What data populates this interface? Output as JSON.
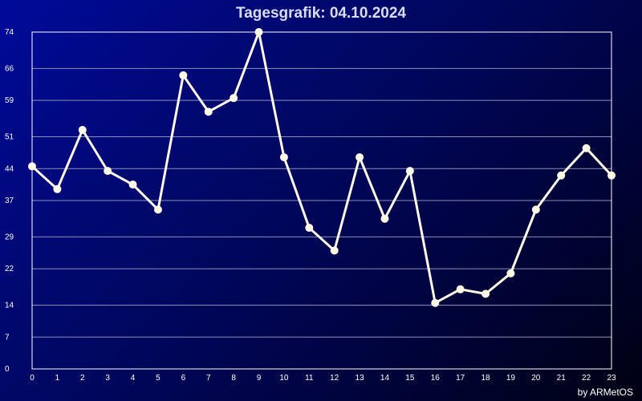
{
  "title": "Tagesgrafik: 04.10.2024",
  "credit": "by ARMetOS",
  "colors": {
    "background_start": "#000a9a",
    "background_end": "#000112",
    "line": "#fffbe6",
    "grid": "#8a8fb8",
    "axis": "#ffffff",
    "text": "#ffffff"
  },
  "chart_data": {
    "type": "line",
    "title": "Tagesgrafik: 04.10.2024",
    "xlabel": "",
    "ylabel": "",
    "x": [
      0,
      1,
      2,
      3,
      4,
      5,
      6,
      7,
      8,
      9,
      10,
      11,
      12,
      13,
      14,
      15,
      16,
      17,
      18,
      19,
      20,
      21,
      22,
      23
    ],
    "y_ticks": [
      0,
      7,
      14,
      22,
      29,
      37,
      44,
      51,
      59,
      66,
      74
    ],
    "ylim": [
      0,
      74
    ],
    "xlim": [
      0,
      23
    ],
    "grid": true,
    "series": [
      {
        "name": "",
        "values": [
          44.5,
          39.5,
          52.5,
          43.5,
          40.5,
          35,
          64.5,
          56.5,
          59.5,
          74,
          46.5,
          31,
          26,
          46.5,
          33,
          43.5,
          14.5,
          17.5,
          16.5,
          21,
          35,
          42.5,
          48.5,
          42.5
        ]
      }
    ]
  }
}
